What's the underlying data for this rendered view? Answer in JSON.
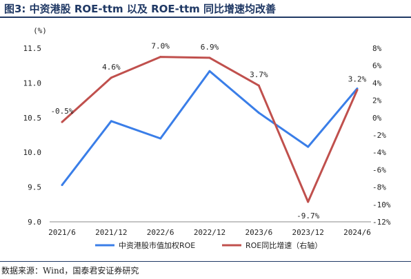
{
  "title": "图3:  中资港股 ROE-ttm 以及 ROE-ttm 同比增速均改善",
  "source": "数据来源：Wind，国泰君安证券研究",
  "chart_data": {
    "type": "line",
    "left_unit": "(%)",
    "x": [
      "2021/6",
      "2021/12",
      "2022/6",
      "2022/12",
      "2023/6",
      "2023/12",
      "2024/6"
    ],
    "y_left_ticks": [
      "9.0",
      "9.5",
      "10.0",
      "10.5",
      "11.0",
      "11.5"
    ],
    "y_right_ticks": [
      "-12%",
      "-10%",
      "-8%",
      "-6%",
      "-4%",
      "-2%",
      "0%",
      "2%",
      "4%",
      "6%",
      "8%"
    ],
    "ylim_left": [
      9.0,
      11.5
    ],
    "ylim_right": [
      -12,
      8
    ],
    "series": [
      {
        "name": "中资港股市值加权ROE",
        "axis": "left",
        "color": "#3a7ee8",
        "values": [
          9.53,
          10.45,
          10.2,
          11.17,
          10.57,
          10.08,
          10.92
        ]
      },
      {
        "name": "ROE同比增速（右轴）",
        "axis": "right",
        "color": "#c0504d",
        "values": [
          -0.5,
          4.6,
          7.0,
          6.9,
          3.7,
          -9.7,
          3.2
        ],
        "labels": [
          "-0.5%",
          "4.6%",
          "7.0%",
          "6.9%",
          "3.7%",
          "-9.7%",
          "3.2%"
        ]
      }
    ],
    "legend_position": "bottom",
    "grid": false
  }
}
